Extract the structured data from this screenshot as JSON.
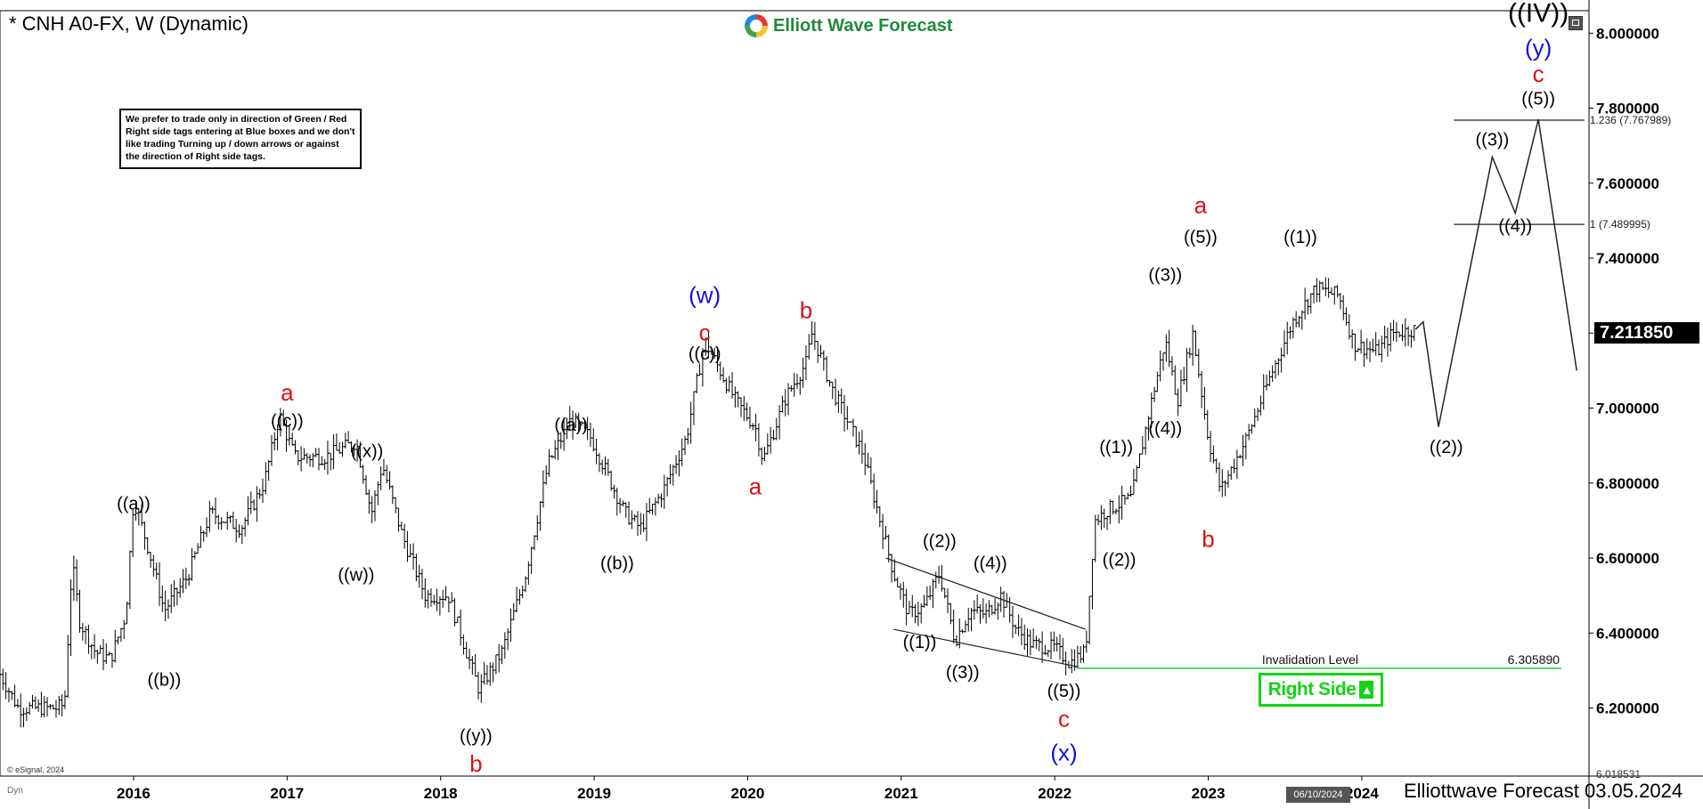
{
  "header": {
    "title": "* CNH A0-FX, W (Dynamic)",
    "logo_text": "Elliott Wave Forecast",
    "note": "We prefer to trade only in direction of Green / Red Right side tags entering at Blue boxes and we don't like trading Turning up / down arrows or against the direction of Right side tags."
  },
  "footer": {
    "text": "Elliottwave Forecast 03.05.2024",
    "esignal": "© eSignal, 2024",
    "dyn": "Dyn",
    "date_tag": "06/10/2024"
  },
  "tags": {
    "right_side": "Right Side",
    "last_price": "7.211850",
    "arrow_icon": "arrow-up-icon",
    "right_side_color": "#14d414",
    "invalidation_color": "#12c812"
  },
  "chart_data": {
    "type": "ohlc",
    "title": "* CNH A0-FX, W (Dynamic)",
    "ylim": [
      6.018531,
      8.06
    ],
    "y_ticks": [
      6.2,
      6.4,
      6.6,
      6.8,
      7.0,
      7.2,
      7.4,
      7.6,
      7.8,
      8.0
    ],
    "y_tick_labels": [
      "6.200000",
      "6.400000",
      "6.600000",
      "6.800000",
      "7.000000",
      "7.200000",
      "7.400000",
      "7.600000",
      "7.800000",
      "8.000000"
    ],
    "y_bottom_label": "6.018531",
    "x_ticks": [
      2016,
      2017,
      2018,
      2019,
      2020,
      2021,
      2022,
      2023,
      2024
    ],
    "xlim": [
      2015.13,
      2025.48
    ],
    "last_price": 7.21185,
    "price_path": [
      [
        2015.13,
        6.29
      ],
      [
        2015.25,
        6.2
      ],
      [
        2015.5,
        6.2
      ],
      [
        2015.55,
        6.21
      ],
      [
        2015.6,
        6.59
      ],
      [
        2015.65,
        6.43
      ],
      [
        2015.75,
        6.35
      ],
      [
        2015.85,
        6.33
      ],
      [
        2015.95,
        6.45
      ],
      [
        2016.0,
        6.76
      ],
      [
        2016.1,
        6.62
      ],
      [
        2016.2,
        6.46
      ],
      [
        2016.35,
        6.55
      ],
      [
        2016.5,
        6.72
      ],
      [
        2016.7,
        6.68
      ],
      [
        2016.85,
        6.8
      ],
      [
        2016.95,
        6.98
      ],
      [
        2017.05,
        6.87
      ],
      [
        2017.25,
        6.87
      ],
      [
        2017.45,
        6.91
      ],
      [
        2017.55,
        6.72
      ],
      [
        2017.62,
        6.85
      ],
      [
        2017.75,
        6.66
      ],
      [
        2017.9,
        6.5
      ],
      [
        2018.05,
        6.5
      ],
      [
        2018.2,
        6.31
      ],
      [
        2018.25,
        6.25
      ],
      [
        2018.4,
        6.35
      ],
      [
        2018.55,
        6.55
      ],
      [
        2018.7,
        6.85
      ],
      [
        2018.85,
        6.97
      ],
      [
        2018.98,
        6.92
      ],
      [
        2019.2,
        6.72
      ],
      [
        2019.3,
        6.68
      ],
      [
        2019.45,
        6.78
      ],
      [
        2019.6,
        6.92
      ],
      [
        2019.72,
        7.18
      ],
      [
        2019.82,
        7.1
      ],
      [
        2019.92,
        7.02
      ],
      [
        2020.05,
        6.95
      ],
      [
        2020.1,
        6.86
      ],
      [
        2020.25,
        7.03
      ],
      [
        2020.38,
        7.12
      ],
      [
        2020.42,
        7.2
      ],
      [
        2020.55,
        7.05
      ],
      [
        2020.75,
        6.88
      ],
      [
        2020.95,
        6.56
      ],
      [
        2021.05,
        6.45
      ],
      [
        2021.15,
        6.47
      ],
      [
        2021.25,
        6.56
      ],
      [
        2021.35,
        6.38
      ],
      [
        2021.45,
        6.46
      ],
      [
        2021.55,
        6.45
      ],
      [
        2021.65,
        6.5
      ],
      [
        2021.75,
        6.41
      ],
      [
        2021.85,
        6.37
      ],
      [
        2022.0,
        6.36
      ],
      [
        2022.1,
        6.32
      ],
      [
        2022.2,
        6.35
      ],
      [
        2022.26,
        6.7
      ],
      [
        2022.35,
        6.73
      ],
      [
        2022.5,
        6.76
      ],
      [
        2022.62,
        7.0
      ],
      [
        2022.72,
        7.18
      ],
      [
        2022.8,
        7.02
      ],
      [
        2022.9,
        7.2
      ],
      [
        2023.0,
        6.92
      ],
      [
        2023.08,
        6.78
      ],
      [
        2023.25,
        6.92
      ],
      [
        2023.4,
        7.08
      ],
      [
        2023.55,
        7.23
      ],
      [
        2023.7,
        7.32
      ],
      [
        2023.85,
        7.3
      ],
      [
        2023.95,
        7.17
      ],
      [
        2024.1,
        7.15
      ],
      [
        2024.2,
        7.2
      ],
      [
        2024.35,
        7.21
      ]
    ],
    "projection": [
      [
        2024.35,
        7.21
      ],
      [
        2024.4,
        7.23
      ],
      [
        2024.5,
        6.95
      ],
      [
        2024.85,
        7.67
      ],
      [
        2025.0,
        7.52
      ],
      [
        2025.15,
        7.77
      ],
      [
        2025.4,
        7.1
      ]
    ],
    "fib_lines": [
      {
        "label": "1.236 (7.767989)",
        "y": 7.767989,
        "x0": 2024.6,
        "x1": 2025.45
      },
      {
        "label": "1 (7.489995)",
        "y": 7.489995,
        "x0": 2024.6,
        "x1": 2025.45
      }
    ],
    "invalidation": {
      "label": "Invalidation Level",
      "value_label": "6.305890",
      "y": 6.30589,
      "x0": 2022.15,
      "x1": 2025.3
    },
    "trend_lines": [
      [
        2020.95,
        6.41,
        2022.15,
        6.31
      ],
      [
        2020.9,
        6.6,
        2022.2,
        6.41
      ]
    ],
    "wave_labels": [
      {
        "text": "((a))",
        "x": 2016.0,
        "y": 6.73,
        "color": "#000"
      },
      {
        "text": "((b))",
        "x": 2016.2,
        "y": 6.26,
        "color": "#000"
      },
      {
        "text": "((c))",
        "x": 2017.0,
        "y": 6.95,
        "color": "#000"
      },
      {
        "text": "a",
        "x": 2017.0,
        "y": 7.02,
        "color": "#e01010",
        "big": true
      },
      {
        "text": "((x))",
        "x": 2017.52,
        "y": 6.87,
        "color": "#000"
      },
      {
        "text": "((w))",
        "x": 2017.45,
        "y": 6.54,
        "color": "#000"
      },
      {
        "text": "((y))",
        "x": 2018.23,
        "y": 6.11,
        "color": "#000"
      },
      {
        "text": "b",
        "x": 2018.23,
        "y": 6.03,
        "color": "#e01010",
        "big": true
      },
      {
        "text": "((a))",
        "x": 2018.85,
        "y": 6.94,
        "color": "#000"
      },
      {
        "text": "((b))",
        "x": 2019.15,
        "y": 6.57,
        "color": "#000"
      },
      {
        "text": "((c))",
        "x": 2019.72,
        "y": 7.13,
        "color": "#000"
      },
      {
        "text": "c",
        "x": 2019.72,
        "y": 7.18,
        "color": "#e01010",
        "big": true
      },
      {
        "text": "(w)",
        "x": 2019.72,
        "y": 7.28,
        "color": "#1010e0",
        "big": true
      },
      {
        "text": "a",
        "x": 2020.05,
        "y": 6.77,
        "color": "#e01010",
        "big": true
      },
      {
        "text": "b",
        "x": 2020.38,
        "y": 7.24,
        "color": "#e01010",
        "big": true
      },
      {
        "text": "((1))",
        "x": 2021.12,
        "y": 6.36,
        "color": "#000"
      },
      {
        "text": "((2))",
        "x": 2021.25,
        "y": 6.63,
        "color": "#000"
      },
      {
        "text": "((3))",
        "x": 2021.4,
        "y": 6.28,
        "color": "#000"
      },
      {
        "text": "((4))",
        "x": 2021.58,
        "y": 6.57,
        "color": "#000"
      },
      {
        "text": "((5))",
        "x": 2022.06,
        "y": 6.23,
        "color": "#000"
      },
      {
        "text": "c",
        "x": 2022.06,
        "y": 6.15,
        "color": "#e01010",
        "big": true
      },
      {
        "text": "(x)",
        "x": 2022.06,
        "y": 6.06,
        "color": "#1010e0",
        "big": true
      },
      {
        "text": "((1))",
        "x": 2022.4,
        "y": 6.88,
        "color": "#000"
      },
      {
        "text": "((2))",
        "x": 2022.42,
        "y": 6.58,
        "color": "#000"
      },
      {
        "text": "((3))",
        "x": 2022.72,
        "y": 7.34,
        "color": "#000"
      },
      {
        "text": "((4))",
        "x": 2022.72,
        "y": 6.93,
        "color": "#000"
      },
      {
        "text": "((5))",
        "x": 2022.95,
        "y": 7.44,
        "color": "#000"
      },
      {
        "text": "a",
        "x": 2022.95,
        "y": 7.52,
        "color": "#e01010",
        "big": true
      },
      {
        "text": "b",
        "x": 2023.0,
        "y": 6.63,
        "color": "#e01010",
        "big": true
      },
      {
        "text": "((1))",
        "x": 2023.6,
        "y": 7.44,
        "color": "#000"
      },
      {
        "text": "((2))",
        "x": 2024.55,
        "y": 6.88,
        "color": "#000"
      },
      {
        "text": "((3))",
        "x": 2024.85,
        "y": 7.7,
        "color": "#000"
      },
      {
        "text": "((4))",
        "x": 2025.0,
        "y": 7.47,
        "color": "#000"
      },
      {
        "text": "((5))",
        "x": 2025.15,
        "y": 7.81,
        "color": "#000"
      },
      {
        "text": "c",
        "x": 2025.15,
        "y": 7.87,
        "color": "#e01010",
        "big": true
      },
      {
        "text": "(y)",
        "x": 2025.15,
        "y": 7.94,
        "color": "#1010e0",
        "big": true
      },
      {
        "text": "((IV))",
        "x": 2025.15,
        "y": 8.03,
        "color": "#000",
        "big": true
      }
    ]
  }
}
